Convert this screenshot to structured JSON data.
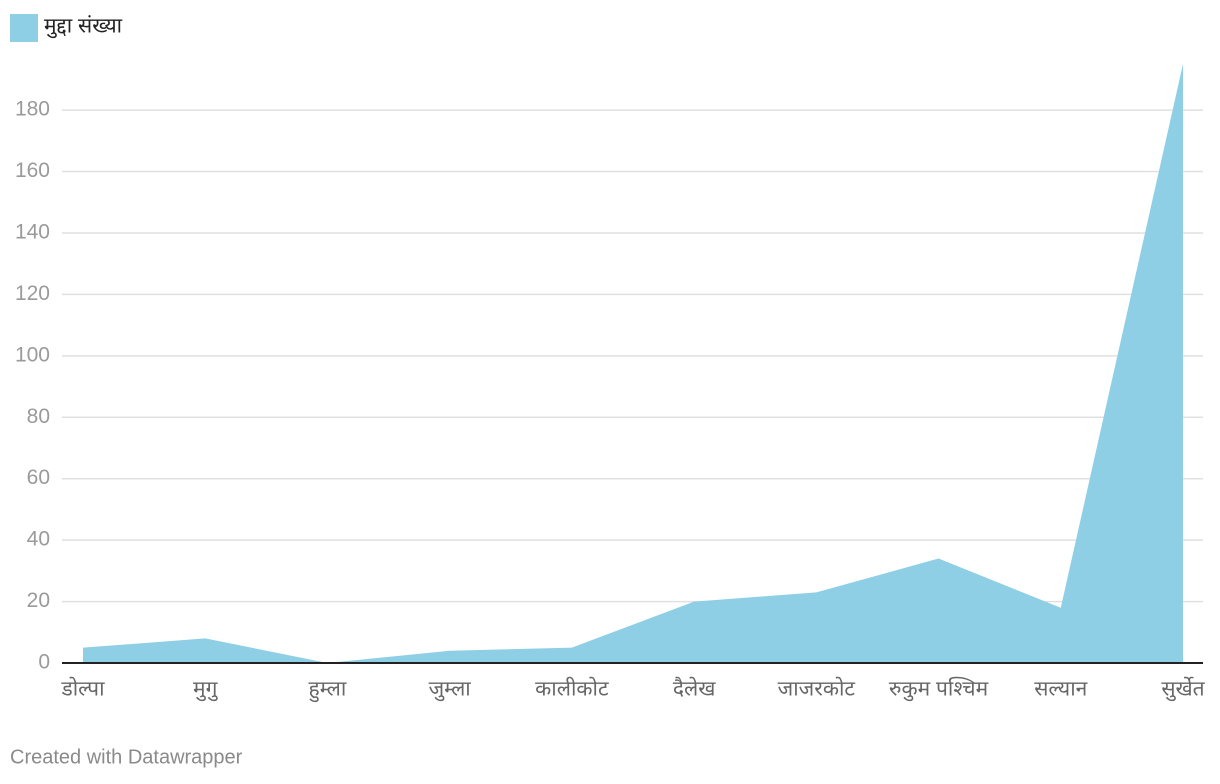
{
  "chart_data": {
    "type": "area",
    "legend_position": "top-left",
    "categories": [
      "डोल्पा",
      "मुगु",
      "हुम्ला",
      "जुम्ला",
      "कालीकोट",
      "दैलेख",
      "जाजरकोट",
      "रुकुम पश्चिम",
      "सल्यान",
      "सुर्खेत"
    ],
    "series": [
      {
        "name": "मुद्दा संख्या",
        "color": "#8ecfe6",
        "values": [
          5,
          8,
          0,
          4,
          5,
          20,
          23,
          34,
          18,
          195
        ]
      }
    ],
    "ylim": [
      0,
      195
    ],
    "yticks": [
      0,
      20,
      40,
      60,
      80,
      100,
      120,
      140,
      160,
      180
    ],
    "grid": true,
    "footer": "Created with Datawrapper"
  }
}
